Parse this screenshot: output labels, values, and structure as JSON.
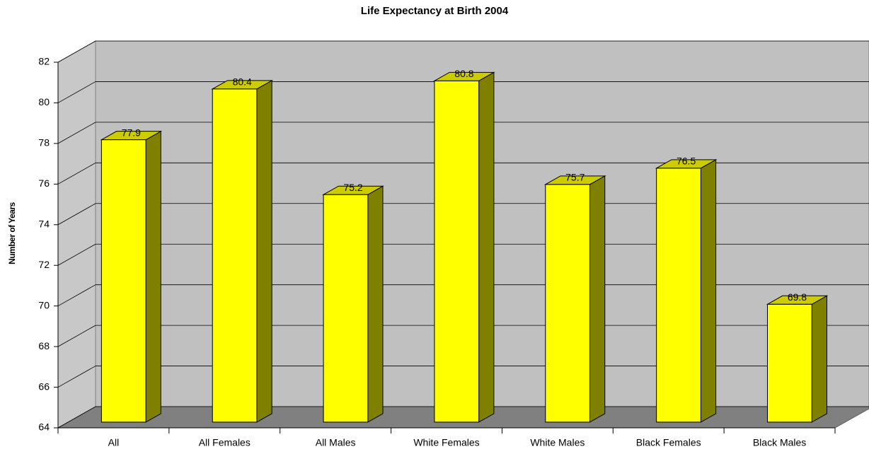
{
  "chart_data": {
    "type": "bar3d",
    "title": "Life Expectancy at Birth 2004",
    "y_label": "Number of Years",
    "categories": [
      "All",
      "All Females",
      "All Males",
      "White Females",
      "White Males",
      "Black Females",
      "Black Males"
    ],
    "values": [
      77.9,
      80.4,
      75.2,
      80.8,
      75.7,
      76.5,
      69.8
    ],
    "color": "#ffff00",
    "ylim": [
      64,
      82
    ],
    "yticks": [
      64,
      66,
      68,
      70,
      72,
      74,
      76,
      78,
      80,
      82
    ],
    "grid": true
  }
}
